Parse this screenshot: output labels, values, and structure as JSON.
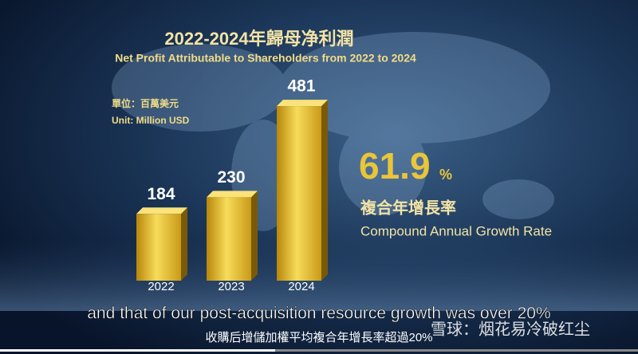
{
  "chart_data": {
    "type": "bar",
    "title": "2022-2024年歸母净利潤",
    "subtitle": "Net Profit Attributable to Shareholders from 2022 to 2024",
    "unit_zh": "單位：百萬美元",
    "unit_en": "Unit: Million USD",
    "categories": [
      "2022",
      "2023",
      "2024"
    ],
    "values": [
      184,
      230,
      481
    ],
    "color": "#e8c23a",
    "cagr_number": "61.9",
    "cagr_unit": "%",
    "cagr_zh": "複合年增長率",
    "cagr_en": "Compound Annual Growth Rate"
  },
  "captions": {
    "en": "and that of our post-acquisition resource growth was over 20%",
    "zh": "收購后增儲加權平均複合年增長率超過20%"
  },
  "watermark": "雪球：烟花易冷破红尘"
}
